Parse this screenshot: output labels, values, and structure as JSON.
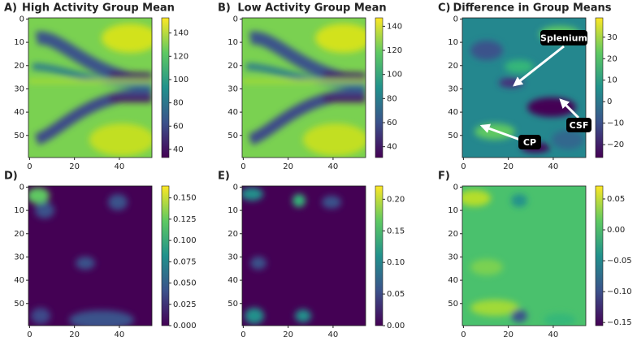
{
  "chart_data": [
    {
      "type": "heatmap",
      "panel": "A)",
      "title": "High Activity Group Mean",
      "xlim": [
        -0.5,
        54.5
      ],
      "ylim": [
        59.5,
        -0.5
      ],
      "xticks": [
        0,
        20,
        40
      ],
      "yticks": [
        0,
        10,
        20,
        30,
        40,
        50
      ],
      "clim": [
        33,
        153
      ],
      "cticks": [
        40,
        60,
        80,
        100,
        120,
        140
      ]
    },
    {
      "type": "heatmap",
      "panel": "B)",
      "title": "Low Activity Group Mean",
      "xlim": [
        -0.5,
        54.5
      ],
      "ylim": [
        59.5,
        -0.5
      ],
      "xticks": [
        0,
        20,
        40
      ],
      "yticks": [
        0,
        10,
        20,
        30,
        40,
        50
      ],
      "clim": [
        31,
        147
      ],
      "cticks": [
        40,
        60,
        80,
        100,
        120,
        140
      ]
    },
    {
      "type": "heatmap",
      "panel": "C)",
      "title": "Difference in Group Means",
      "xlim": [
        -0.5,
        54.5
      ],
      "ylim": [
        59.5,
        -0.5
      ],
      "xticks": [
        0,
        20,
        40
      ],
      "yticks": [
        0,
        10,
        20,
        30,
        40,
        50
      ],
      "clim": [
        -26,
        39
      ],
      "cticks": [
        {
          "value": -20,
          "label": "−20"
        },
        {
          "value": -10,
          "label": "−10"
        },
        0,
        10,
        20,
        30
      ],
      "annotations": [
        {
          "text": "Splenium"
        },
        {
          "text": "CSF"
        },
        {
          "text": "CP"
        }
      ]
    },
    {
      "type": "heatmap",
      "panel": "D)",
      "xlim": [
        -0.5,
        54.5
      ],
      "ylim": [
        59.5,
        -0.5
      ],
      "xticks": [
        0,
        20,
        40
      ],
      "yticks": [
        0,
        10,
        20,
        30,
        40,
        50
      ],
      "clim": [
        0,
        0.164
      ],
      "cticks": [
        {
          "value": 0,
          "label": "0.000"
        },
        {
          "value": 0.025,
          "label": "0.025"
        },
        {
          "value": 0.05,
          "label": "0.050"
        },
        {
          "value": 0.075,
          "label": "0.075"
        },
        {
          "value": 0.1,
          "label": "0.100"
        },
        {
          "value": 0.125,
          "label": "0.125"
        },
        {
          "value": 0.15,
          "label": "0.150"
        }
      ]
    },
    {
      "type": "heatmap",
      "panel": "E)",
      "xlim": [
        -0.5,
        54.5
      ],
      "ylim": [
        59.5,
        -0.5
      ],
      "xticks": [
        0,
        20,
        40
      ],
      "yticks": [
        0,
        10,
        20,
        30,
        40,
        50
      ],
      "clim": [
        0,
        0.221
      ],
      "cticks": [
        {
          "value": 0,
          "label": "0.00"
        },
        0.05,
        {
          "value": 0.1,
          "label": "0.10"
        },
        0.15,
        {
          "value": 0.2,
          "label": "0.20"
        }
      ]
    },
    {
      "type": "heatmap",
      "panel": "F)",
      "xlim": [
        -0.5,
        54.5
      ],
      "ylim": [
        59.5,
        -0.5
      ],
      "xticks": [
        0,
        20,
        40
      ],
      "yticks": [
        0,
        10,
        20,
        30,
        40,
        50
      ],
      "clim": [
        -0.155,
        0.071
      ],
      "cticks": [
        {
          "value": -0.15,
          "label": "−0.15"
        },
        {
          "value": -0.1,
          "label": "−0.10"
        },
        {
          "value": -0.05,
          "label": "−0.05"
        },
        {
          "value": 0,
          "label": "0.00"
        },
        0.05
      ]
    }
  ]
}
